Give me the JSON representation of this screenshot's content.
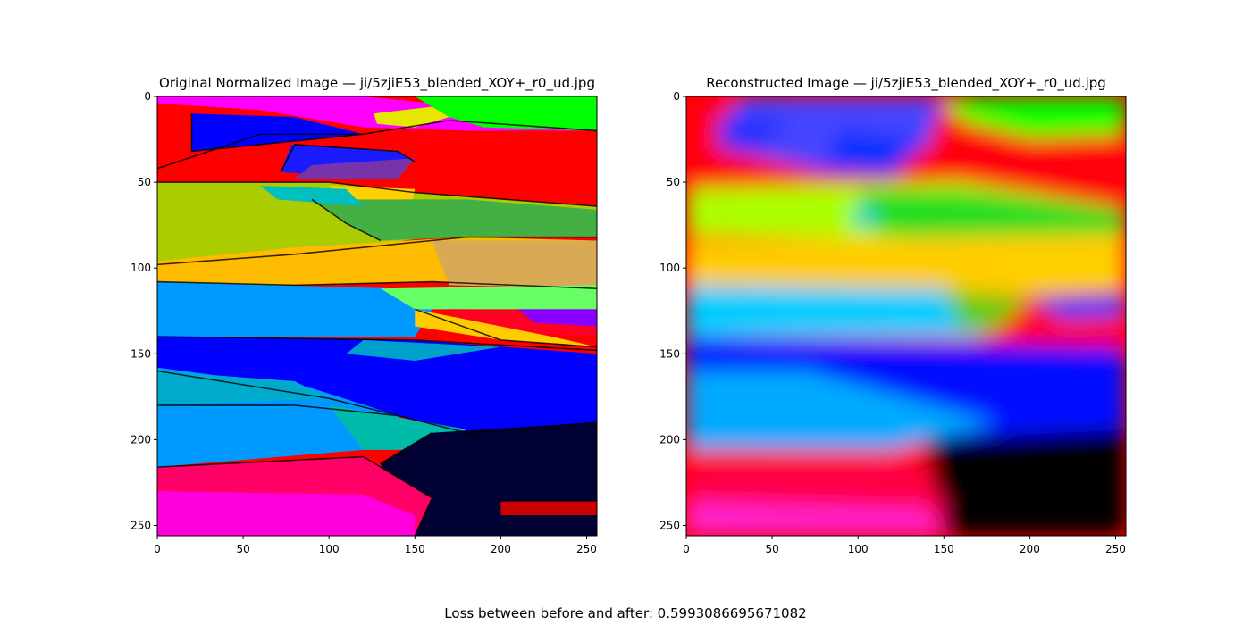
{
  "chart_data": [
    {
      "type": "image",
      "title": "Original Normalized Image  —  ji/5zjiE53_blended_XOY+_r0_ud.jpg",
      "xlim": [
        0,
        256
      ],
      "ylim": [
        256,
        0
      ],
      "xticks": [
        0,
        50,
        100,
        150,
        200,
        250
      ],
      "yticks": [
        0,
        50,
        100,
        150,
        200,
        250
      ],
      "style": "sharp"
    },
    {
      "type": "image",
      "title": "Reconstructed Image  —  ji/5zjiE53_blended_XOY+_r0_ud.jpg",
      "xlim": [
        0,
        256
      ],
      "ylim": [
        256,
        0
      ],
      "xticks": [
        0,
        50,
        100,
        150,
        200,
        250
      ],
      "yticks": [
        0,
        50,
        100,
        150,
        200,
        250
      ],
      "style": "blurred"
    }
  ],
  "footer": {
    "label": "Loss between before and after: 0.5993086695671082"
  }
}
